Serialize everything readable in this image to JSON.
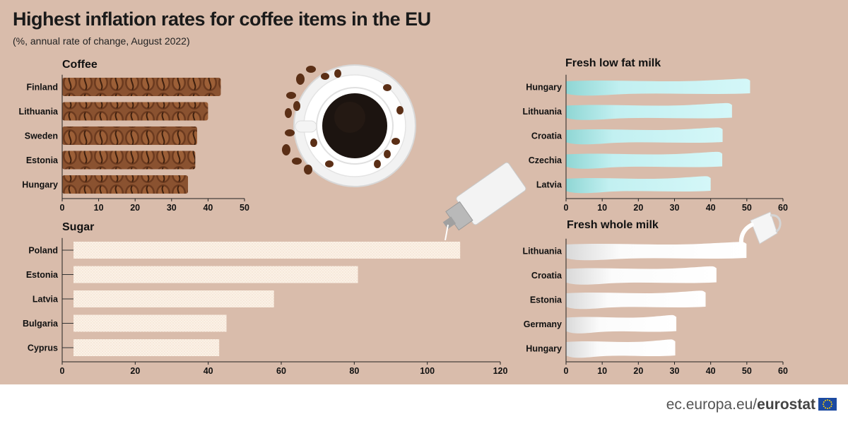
{
  "title": "Highest inflation rates for coffee items in the EU",
  "subtitle": "(%, annual rate of change, August 2022)",
  "footer": {
    "site": "ec.europa.eu/",
    "brand": "eurostat"
  },
  "colors": {
    "background": "#d9bcab",
    "coffee": "#7a4526",
    "milk_low_fat": "#b7ecef",
    "milk_whole": "#f7f7f7",
    "sugar": "#fbf1e6"
  },
  "chart_data": [
    {
      "type": "bar",
      "title": "Coffee",
      "categories": [
        "Finland",
        "Lithuania",
        "Sweden",
        "Estonia",
        "Hungary"
      ],
      "values": [
        43.5,
        40.0,
        37.0,
        36.5,
        34.5
      ],
      "xlim": [
        0,
        50
      ],
      "ticks": [
        0,
        10,
        20,
        30,
        40,
        50
      ]
    },
    {
      "type": "bar",
      "title": "Fresh low fat milk",
      "categories": [
        "Hungary",
        "Lithuania",
        "Croatia",
        "Czechia",
        "Latvia"
      ],
      "values": [
        50.9,
        45.9,
        43.3,
        43.2,
        40.0
      ],
      "xlim": [
        0,
        60
      ],
      "ticks": [
        0,
        10,
        20,
        30,
        40,
        50,
        60
      ]
    },
    {
      "type": "bar",
      "title": "Sugar",
      "categories": [
        "Poland",
        "Estonia",
        "Latvia",
        "Bulgaria",
        "Cyprus"
      ],
      "values": [
        109.0,
        81.0,
        58.0,
        45.0,
        43.0
      ],
      "xlim": [
        0,
        120
      ],
      "ticks": [
        0,
        20,
        40,
        60,
        80,
        100,
        120
      ]
    },
    {
      "type": "bar",
      "title": "Fresh whole milk",
      "categories": [
        "Lithuania",
        "Croatia",
        "Estonia",
        "Germany",
        "Hungary"
      ],
      "values": [
        49.9,
        41.6,
        38.6,
        30.5,
        30.2
      ],
      "xlim": [
        0,
        60
      ],
      "ticks": [
        0,
        10,
        20,
        30,
        40,
        50,
        60
      ]
    }
  ]
}
